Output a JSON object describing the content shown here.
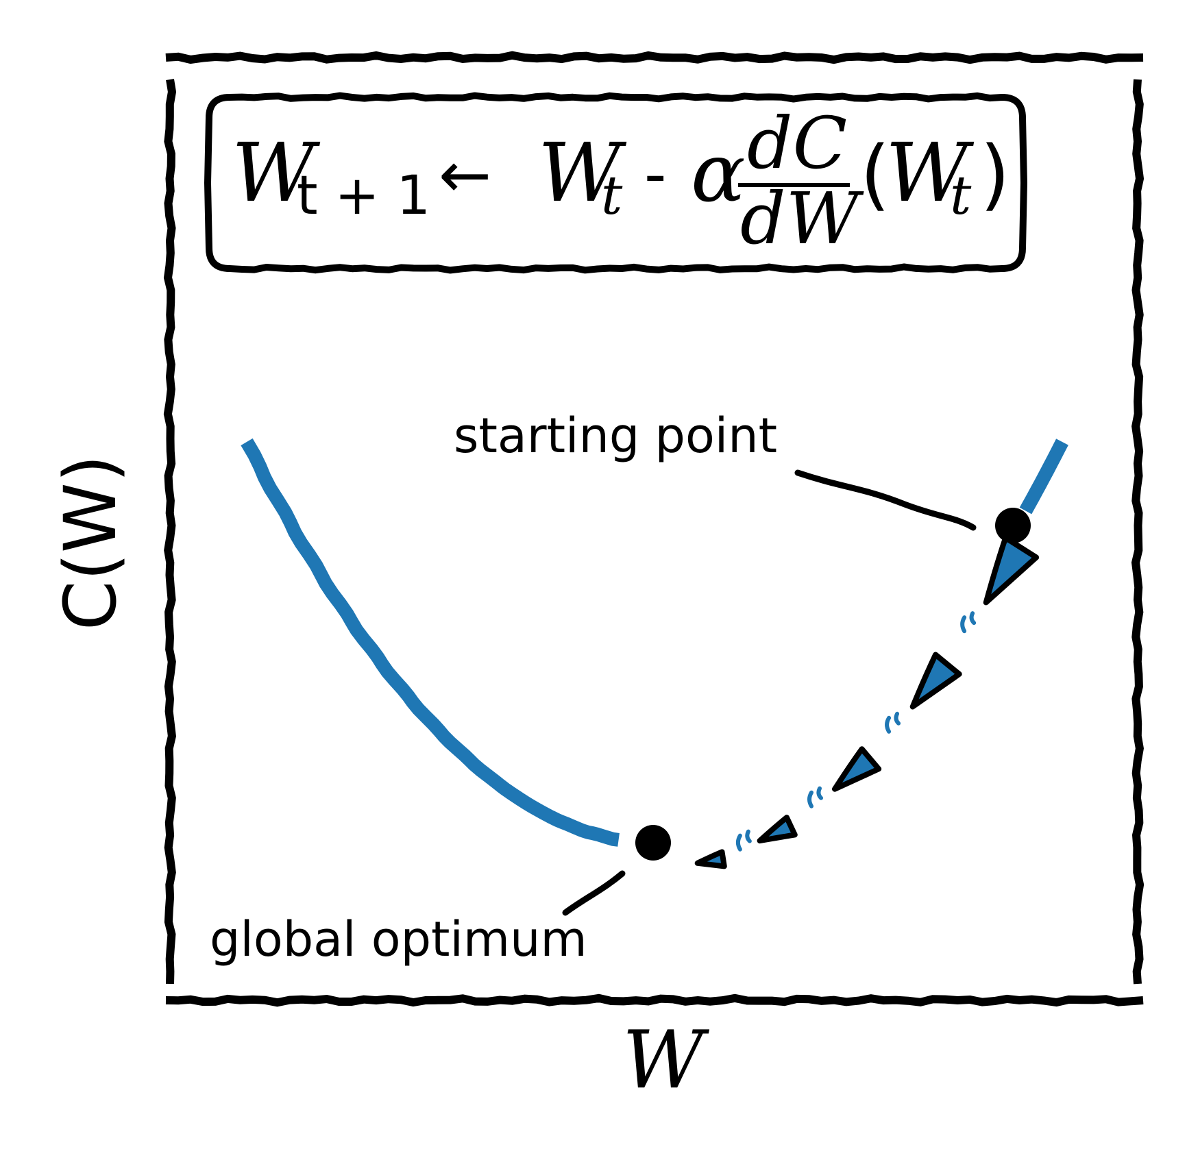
{
  "formula": {
    "lhs": "W",
    "lhs_sub": "t + 1",
    "arrow": "←",
    "term": "W",
    "term_sub": "t",
    "minus": "-",
    "alpha": "α",
    "frac_num": "dC",
    "frac_den": "dW",
    "paren_open": "(",
    "arg": "W",
    "arg_sub": "t",
    "paren_close": ")"
  },
  "annotations": {
    "start": "starting point",
    "optimum": "global optimum"
  },
  "axes": {
    "x_label": "W",
    "y_label": "C(W)"
  },
  "colors": {
    "curve": "#1f77b4",
    "ink": "#000000",
    "background": "#ffffff"
  },
  "chart_data": {
    "type": "line",
    "xlim": [
      0,
      1
    ],
    "ylim": [
      0,
      1
    ],
    "grid": false,
    "series": [
      {
        "x": [
          0.0,
          0.05,
          0.1,
          0.15,
          0.2,
          0.25,
          0.3,
          0.35,
          0.4,
          0.45,
          0.5,
          0.55,
          0.6,
          0.65,
          0.7,
          0.75,
          0.8,
          0.85,
          0.9,
          0.95,
          1.0
        ],
        "y": [
          1.0,
          0.81,
          0.64,
          0.49,
          0.36,
          0.25,
          0.16,
          0.09,
          0.04,
          0.01,
          0.0,
          0.01,
          0.04,
          0.09,
          0.16,
          0.25,
          0.36,
          0.49,
          0.64,
          0.81,
          1.0
        ]
      }
    ],
    "points": [
      {
        "x": 0.52,
        "y": 0.0
      },
      {
        "x": 0.95,
        "y": 0.83
      }
    ],
    "step_count": 5
  }
}
